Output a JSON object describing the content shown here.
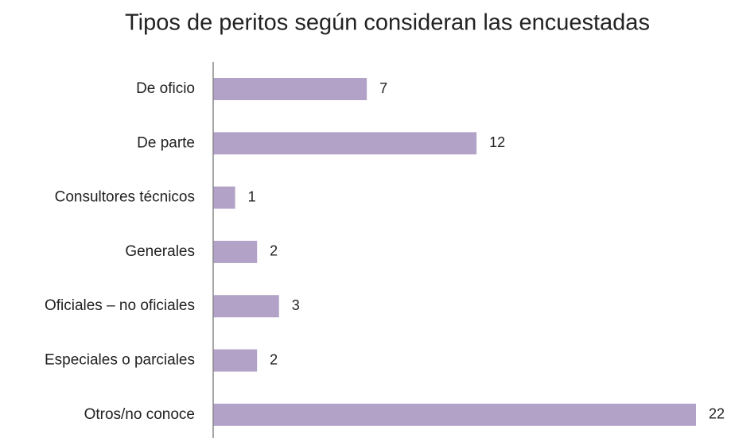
{
  "chart_data": {
    "type": "bar",
    "orientation": "horizontal",
    "title": "Tipos de peritos según consideran las encuestadas",
    "categories": [
      "De oficio",
      "De parte",
      "Consultores técnicos",
      "Generales",
      "Oficiales – no oficiales",
      "Especiales o parciales",
      "Otros/no conoce"
    ],
    "values": [
      7,
      12,
      1,
      2,
      3,
      2,
      22
    ],
    "color": "#b3a2c7"
  }
}
